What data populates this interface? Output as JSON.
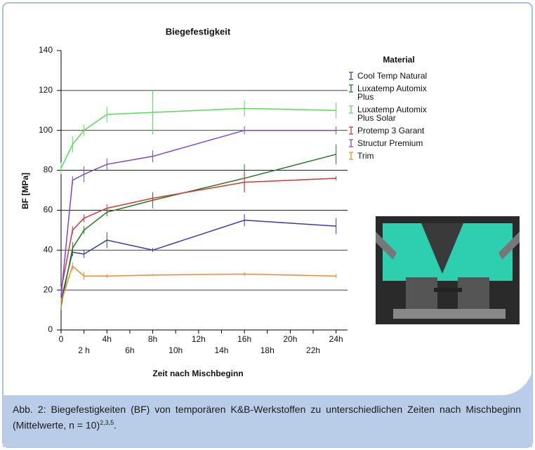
{
  "chart_data": {
    "type": "line",
    "title": "Biegefestigkeit",
    "x_label": "Zeit nach Mischbeginn",
    "y_label": "BF [MPa]",
    "legend_title": "Material",
    "x": [
      0,
      1,
      2,
      4,
      8,
      16,
      24
    ],
    "xlim": [
      0,
      25
    ],
    "ylim": [
      0,
      140
    ],
    "xticks": [
      {
        "value": 0,
        "label": "0"
      },
      {
        "value": 2,
        "label": "2 h"
      },
      {
        "value": 4,
        "label": "4h"
      },
      {
        "value": 6,
        "label": "6h"
      },
      {
        "value": 8,
        "label": "8h"
      },
      {
        "value": 10,
        "label": "10h"
      },
      {
        "value": 12,
        "label": "12h"
      },
      {
        "value": 14,
        "label": "14h"
      },
      {
        "value": 16,
        "label": "16h"
      },
      {
        "value": 18,
        "label": "18h"
      },
      {
        "value": 20,
        "label": "20h"
      },
      {
        "value": 22,
        "label": "22h"
      },
      {
        "value": 24,
        "label": "24h"
      }
    ],
    "yticks": [
      0,
      20,
      40,
      60,
      80,
      100,
      120,
      140
    ],
    "grid": true,
    "series": [
      {
        "name": "Cool Temp Natural",
        "color": "#3a3ab0",
        "values": [
          15,
          39,
          38,
          45,
          40,
          55,
          52
        ],
        "errors": [
          2,
          2,
          2,
          4,
          1,
          3,
          4
        ]
      },
      {
        "name": "Luxatemp Automix Plus",
        "color": "#1f7a1f",
        "values": [
          12,
          41,
          50,
          59,
          65,
          76,
          88
        ],
        "errors": [
          2,
          3,
          2,
          2,
          4,
          7,
          5
        ]
      },
      {
        "name": "Luxatemp Automix Plus Solar",
        "color": "#55dd55",
        "values": [
          81,
          93,
          100,
          108,
          109,
          111,
          110
        ],
        "errors": [
          3,
          4,
          3,
          4,
          11,
          4,
          4
        ]
      },
      {
        "name": "Protemp 3 Garant",
        "color": "#e03333",
        "values": [
          20,
          50,
          56,
          61,
          66,
          74,
          76
        ],
        "errors": [
          2,
          2,
          2,
          2,
          3,
          5,
          1
        ]
      },
      {
        "name": "Structur Premium",
        "color": "#7d45d0",
        "values": [
          17,
          75,
          78,
          83,
          87,
          100,
          100
        ],
        "errors": [
          2,
          2,
          4,
          3,
          3,
          2,
          2
        ]
      },
      {
        "name": "Trim",
        "color": "#f08a2a",
        "values": [
          14,
          32,
          27,
          27,
          27.5,
          28,
          27
        ],
        "errors": [
          2,
          2,
          2,
          1,
          0.5,
          1,
          1
        ]
      }
    ]
  },
  "caption": {
    "text": "Abb. 2: Biegefestigkeiten (BF) von temporären K&B-Werkstoffen zu unterschiedlichen Zeiten nach Mischbeginn (Mittelwerte, n = 10)",
    "superscript": "2,3,5",
    "end": "."
  }
}
